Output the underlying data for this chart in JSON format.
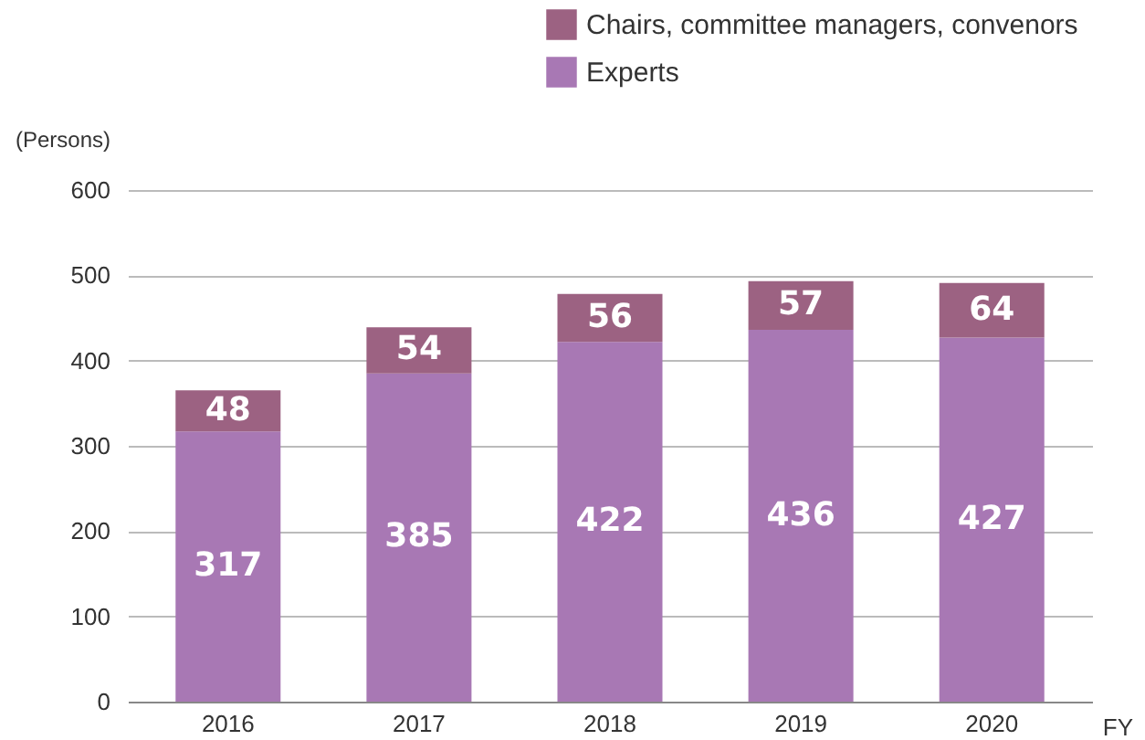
{
  "chart_data": {
    "type": "bar",
    "stacked": true,
    "ylabel": "(Persons)",
    "xlabel": "FY",
    "categories": [
      "2016",
      "2017",
      "2018",
      "2019",
      "2020"
    ],
    "series": [
      {
        "name": "Experts",
        "color": "#a878b4",
        "values": [
          317,
          385,
          422,
          436,
          427
        ]
      },
      {
        "name": "Chairs, committee managers, convenors",
        "color": "#9c6282",
        "values": [
          48,
          54,
          56,
          57,
          64
        ]
      }
    ],
    "ylim": [
      0,
      600
    ],
    "yticks": [
      0,
      100,
      200,
      300,
      400,
      500,
      600
    ],
    "grid": "y",
    "legend": "top right",
    "data_labels": true
  }
}
